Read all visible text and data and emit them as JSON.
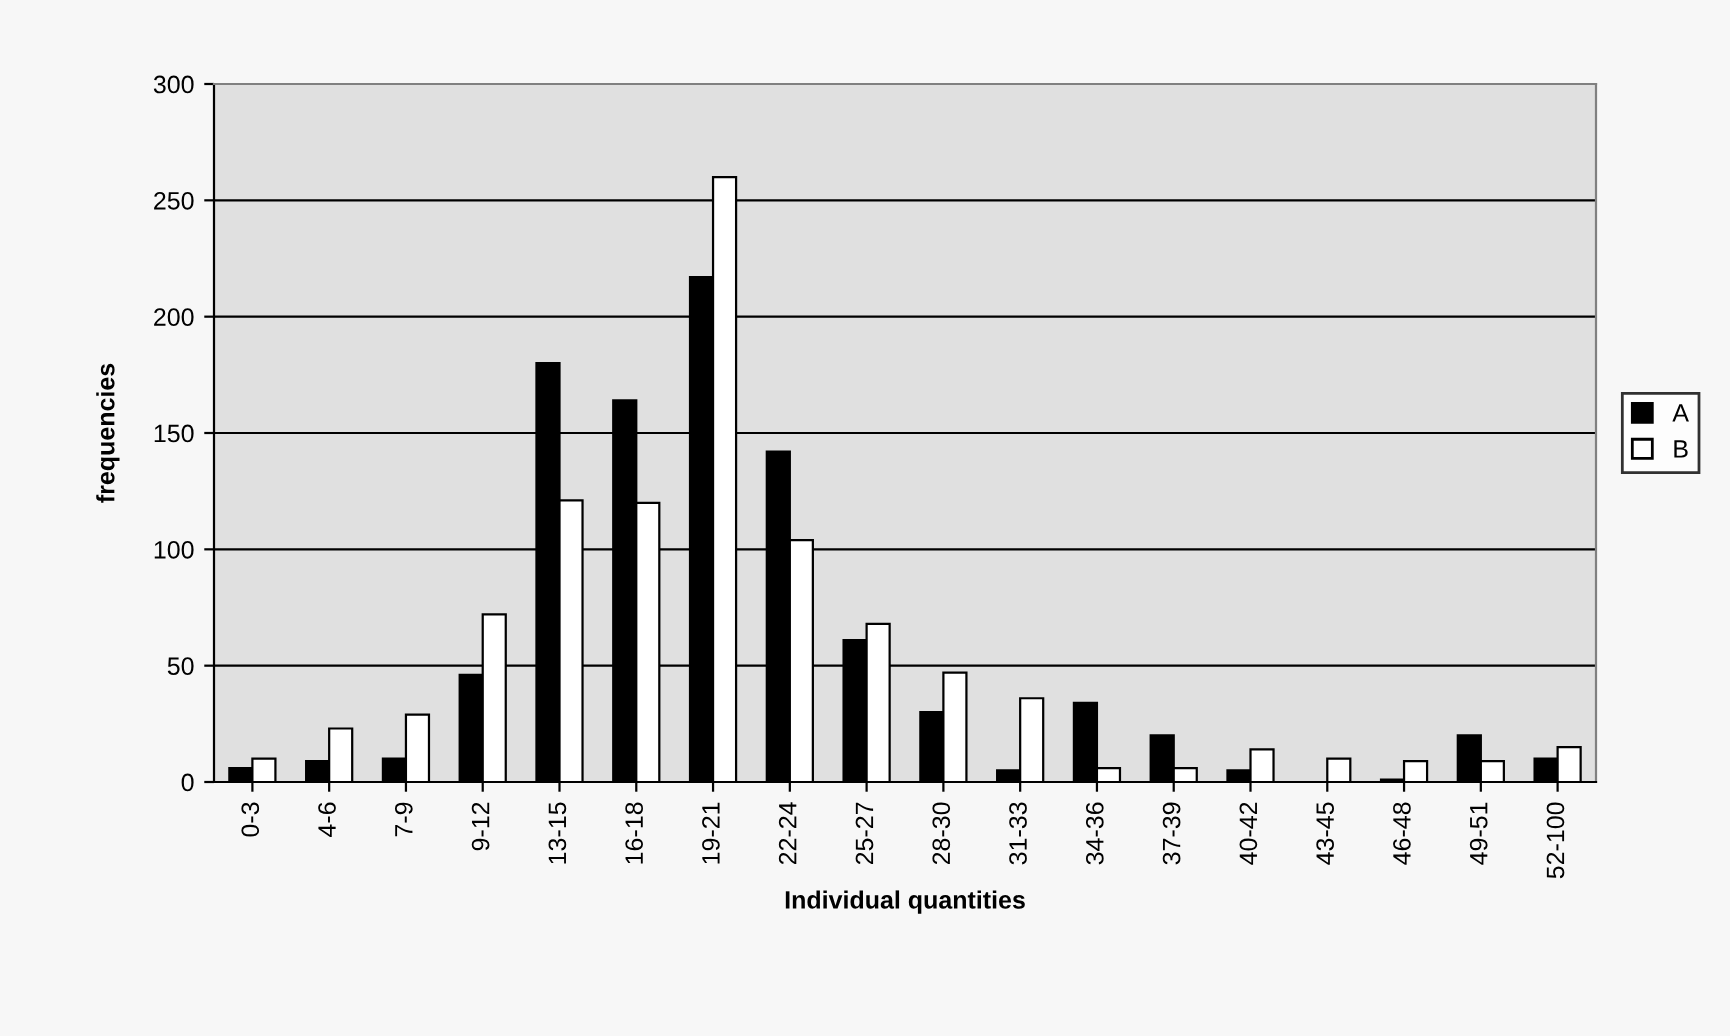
{
  "chart_data": {
    "type": "bar",
    "xlabel": "Individual quantities",
    "ylabel": "frequencies",
    "categories": [
      "0-3",
      "4-6",
      "7-9",
      "9-12",
      "13-15",
      "16-18",
      "19-21",
      "22-24",
      "25-27",
      "28-30",
      "31-33",
      "34-36",
      "37-39",
      "40-42",
      "43-45",
      "46-48",
      "49-51",
      "52-100"
    ],
    "series": [
      {
        "name": "A",
        "color": "#000000",
        "values": [
          6,
          9,
          10,
          46,
          180,
          164,
          217,
          142,
          61,
          30,
          5,
          34,
          20,
          5,
          0,
          1,
          20,
          10
        ]
      },
      {
        "name": "B",
        "color": "#ffffff",
        "values": [
          10,
          23,
          29,
          72,
          121,
          120,
          260,
          104,
          68,
          47,
          36,
          6,
          6,
          14,
          10,
          9,
          9,
          15
        ]
      }
    ],
    "ylim": [
      0,
      300
    ],
    "yticks": [
      0,
      50,
      100,
      150,
      200,
      250,
      300
    ],
    "grid": "y",
    "legend": "right"
  }
}
